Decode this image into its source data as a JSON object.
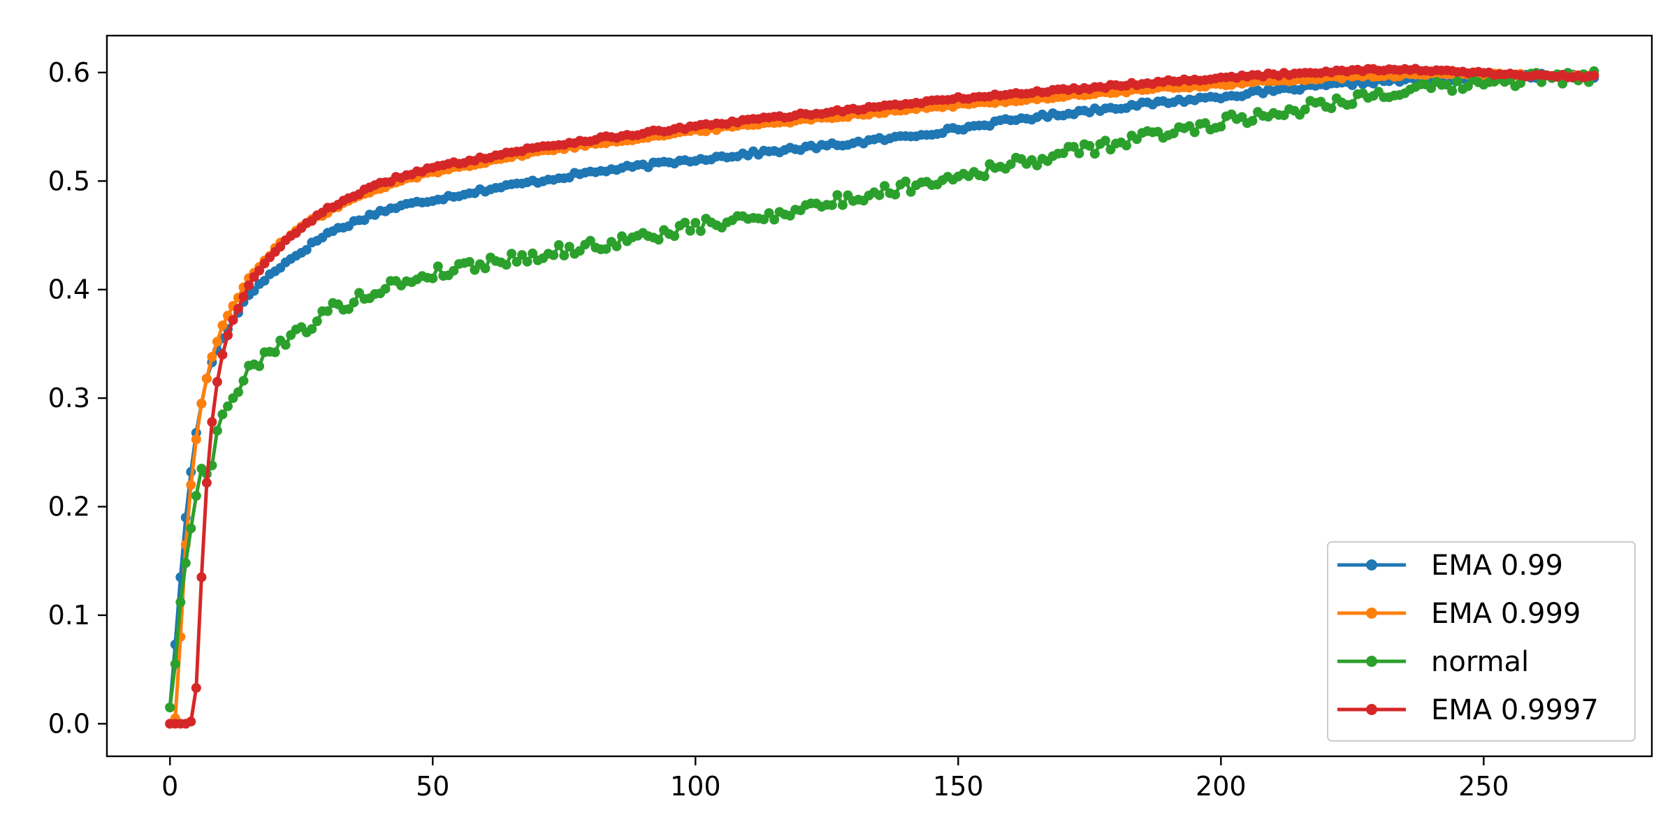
{
  "chart_data": {
    "type": "line",
    "title": "",
    "xlabel": "",
    "ylabel": "",
    "xlim": [
      -12,
      282
    ],
    "ylim": [
      -0.03,
      0.634
    ],
    "xticks": [
      0,
      50,
      100,
      150,
      200,
      250
    ],
    "yticks": [
      0.0,
      0.1,
      0.2,
      0.3,
      0.4,
      0.5,
      0.6
    ],
    "xtick_labels": [
      "0",
      "50",
      "100",
      "150",
      "200",
      "250"
    ],
    "ytick_labels": [
      "0.0",
      "0.1",
      "0.2",
      "0.3",
      "0.4",
      "0.5",
      "0.6"
    ],
    "grid": false,
    "legend_position": "lower-right",
    "markers": "circle",
    "x_points": 272,
    "series": [
      {
        "name": "EMA 0.99",
        "color": "#1f77b4",
        "anchors": [
          [
            0,
            0.015
          ],
          [
            1,
            0.073
          ],
          [
            2,
            0.135
          ],
          [
            3,
            0.19
          ],
          [
            4,
            0.232
          ],
          [
            5,
            0.268
          ],
          [
            6,
            0.295
          ],
          [
            7,
            0.318
          ],
          [
            8,
            0.333
          ],
          [
            10,
            0.355
          ],
          [
            12,
            0.372
          ],
          [
            15,
            0.395
          ],
          [
            20,
            0.418
          ],
          [
            25,
            0.435
          ],
          [
            30,
            0.452
          ],
          [
            35,
            0.462
          ],
          [
            40,
            0.472
          ],
          [
            45,
            0.478
          ],
          [
            50,
            0.483
          ],
          [
            60,
            0.492
          ],
          [
            70,
            0.5
          ],
          [
            80,
            0.508
          ],
          [
            90,
            0.514
          ],
          [
            100,
            0.52
          ],
          [
            110,
            0.525
          ],
          [
            120,
            0.53
          ],
          [
            130,
            0.535
          ],
          [
            140,
            0.541
          ],
          [
            150,
            0.548
          ],
          [
            160,
            0.556
          ],
          [
            170,
            0.562
          ],
          [
            180,
            0.568
          ],
          [
            190,
            0.573
          ],
          [
            200,
            0.578
          ],
          [
            210,
            0.583
          ],
          [
            220,
            0.588
          ],
          [
            230,
            0.592
          ],
          [
            240,
            0.594
          ],
          [
            250,
            0.596
          ],
          [
            260,
            0.597
          ],
          [
            271,
            0.597
          ]
        ]
      },
      {
        "name": "EMA 0.999",
        "color": "#ff7f0e",
        "anchors": [
          [
            0,
            0.0
          ],
          [
            1,
            0.005
          ],
          [
            2,
            0.08
          ],
          [
            3,
            0.165
          ],
          [
            4,
            0.22
          ],
          [
            5,
            0.262
          ],
          [
            6,
            0.295
          ],
          [
            7,
            0.318
          ],
          [
            8,
            0.338
          ],
          [
            9,
            0.352
          ],
          [
            10,
            0.367
          ],
          [
            12,
            0.385
          ],
          [
            15,
            0.41
          ],
          [
            20,
            0.438
          ],
          [
            25,
            0.458
          ],
          [
            30,
            0.472
          ],
          [
            35,
            0.484
          ],
          [
            40,
            0.493
          ],
          [
            45,
            0.502
          ],
          [
            50,
            0.508
          ],
          [
            60,
            0.518
          ],
          [
            70,
            0.527
          ],
          [
            80,
            0.534
          ],
          [
            90,
            0.54
          ],
          [
            100,
            0.546
          ],
          [
            110,
            0.552
          ],
          [
            120,
            0.556
          ],
          [
            130,
            0.561
          ],
          [
            140,
            0.566
          ],
          [
            150,
            0.57
          ],
          [
            160,
            0.574
          ],
          [
            170,
            0.578
          ],
          [
            180,
            0.582
          ],
          [
            190,
            0.586
          ],
          [
            200,
            0.589
          ],
          [
            210,
            0.592
          ],
          [
            220,
            0.595
          ],
          [
            230,
            0.597
          ],
          [
            240,
            0.598
          ],
          [
            250,
            0.598
          ],
          [
            260,
            0.597
          ],
          [
            271,
            0.597
          ]
        ]
      },
      {
        "name": "normal",
        "color": "#2ca02c",
        "anchors": [
          [
            0,
            0.015
          ],
          [
            1,
            0.055
          ],
          [
            2,
            0.112
          ],
          [
            3,
            0.148
          ],
          [
            4,
            0.18
          ],
          [
            5,
            0.21
          ],
          [
            6,
            0.235
          ],
          [
            7,
            0.23
          ],
          [
            8,
            0.238
          ],
          [
            9,
            0.27
          ],
          [
            10,
            0.285
          ],
          [
            12,
            0.3
          ],
          [
            15,
            0.325
          ],
          [
            18,
            0.34
          ],
          [
            20,
            0.348
          ],
          [
            25,
            0.362
          ],
          [
            30,
            0.38
          ],
          [
            35,
            0.39
          ],
          [
            40,
            0.4
          ],
          [
            45,
            0.408
          ],
          [
            50,
            0.415
          ],
          [
            60,
            0.425
          ],
          [
            70,
            0.432
          ],
          [
            80,
            0.44
          ],
          [
            90,
            0.448
          ],
          [
            100,
            0.458
          ],
          [
            110,
            0.465
          ],
          [
            120,
            0.475
          ],
          [
            130,
            0.484
          ],
          [
            140,
            0.495
          ],
          [
            150,
            0.505
          ],
          [
            160,
            0.515
          ],
          [
            170,
            0.525
          ],
          [
            180,
            0.535
          ],
          [
            190,
            0.545
          ],
          [
            200,
            0.555
          ],
          [
            210,
            0.562
          ],
          [
            220,
            0.572
          ],
          [
            230,
            0.58
          ],
          [
            240,
            0.585
          ],
          [
            250,
            0.59
          ],
          [
            260,
            0.595
          ],
          [
            271,
            0.596
          ]
        ]
      },
      {
        "name": "EMA 0.9997",
        "color": "#d62728",
        "anchors": [
          [
            0,
            0.0
          ],
          [
            1,
            0.0
          ],
          [
            2,
            0.0
          ],
          [
            3,
            0.0
          ],
          [
            4,
            0.002
          ],
          [
            5,
            0.033
          ],
          [
            6,
            0.135
          ],
          [
            7,
            0.222
          ],
          [
            8,
            0.278
          ],
          [
            9,
            0.315
          ],
          [
            10,
            0.34
          ],
          [
            11,
            0.358
          ],
          [
            12,
            0.372
          ],
          [
            15,
            0.405
          ],
          [
            20,
            0.435
          ],
          [
            25,
            0.458
          ],
          [
            30,
            0.474
          ],
          [
            35,
            0.487
          ],
          [
            40,
            0.497
          ],
          [
            45,
            0.506
          ],
          [
            50,
            0.512
          ],
          [
            60,
            0.522
          ],
          [
            70,
            0.531
          ],
          [
            80,
            0.538
          ],
          [
            90,
            0.544
          ],
          [
            100,
            0.55
          ],
          [
            110,
            0.556
          ],
          [
            120,
            0.561
          ],
          [
            130,
            0.566
          ],
          [
            140,
            0.571
          ],
          [
            150,
            0.576
          ],
          [
            160,
            0.58
          ],
          [
            170,
            0.584
          ],
          [
            180,
            0.588
          ],
          [
            190,
            0.592
          ],
          [
            200,
            0.595
          ],
          [
            210,
            0.598
          ],
          [
            220,
            0.601
          ],
          [
            230,
            0.603
          ],
          [
            240,
            0.602
          ],
          [
            250,
            0.599
          ],
          [
            260,
            0.597
          ],
          [
            271,
            0.596
          ]
        ]
      }
    ]
  }
}
